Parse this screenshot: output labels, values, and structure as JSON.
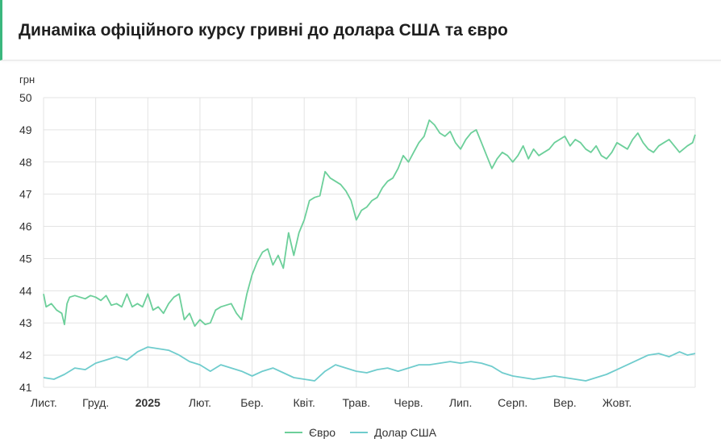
{
  "header": {
    "title": "Динаміка офіційного курсу гривні до долара США та євро"
  },
  "chart_data": {
    "type": "line",
    "y_unit": "грн",
    "ylim": [
      41,
      50
    ],
    "yticks": [
      "41",
      "42",
      "43",
      "44",
      "45",
      "46",
      "47",
      "48",
      "49",
      "50"
    ],
    "xlim": [
      0,
      12.5
    ],
    "xticks": [
      {
        "label": "Лист.",
        "pos": 0,
        "bold": false
      },
      {
        "label": "Груд.",
        "pos": 1,
        "bold": false
      },
      {
        "label": "2025",
        "pos": 2,
        "bold": true
      },
      {
        "label": "Лют.",
        "pos": 3,
        "bold": false
      },
      {
        "label": "Бер.",
        "pos": 4,
        "bold": false
      },
      {
        "label": "Квіт.",
        "pos": 5,
        "bold": false
      },
      {
        "label": "Трав.",
        "pos": 6,
        "bold": false
      },
      {
        "label": "Черв.",
        "pos": 7,
        "bold": false
      },
      {
        "label": "Лип.",
        "pos": 8,
        "bold": false
      },
      {
        "label": "Серп.",
        "pos": 9,
        "bold": false
      },
      {
        "label": "Вер.",
        "pos": 10,
        "bold": false
      },
      {
        "label": "Жовт.",
        "pos": 11,
        "bold": false
      }
    ],
    "grid": true,
    "legend_position": "bottom",
    "series": [
      {
        "name": "Євро",
        "color": "#6ccf9a",
        "x": [
          0,
          0.05,
          0.15,
          0.25,
          0.35,
          0.4,
          0.45,
          0.5,
          0.6,
          0.7,
          0.8,
          0.9,
          1.0,
          1.1,
          1.2,
          1.3,
          1.4,
          1.5,
          1.6,
          1.7,
          1.8,
          1.9,
          2.0,
          2.1,
          2.2,
          2.3,
          2.4,
          2.5,
          2.6,
          2.7,
          2.8,
          2.9,
          3.0,
          3.1,
          3.2,
          3.3,
          3.4,
          3.5,
          3.6,
          3.7,
          3.8,
          3.9,
          4.0,
          4.1,
          4.2,
          4.3,
          4.4,
          4.5,
          4.6,
          4.7,
          4.8,
          4.9,
          5.0,
          5.1,
          5.2,
          5.3,
          5.4,
          5.5,
          5.6,
          5.7,
          5.8,
          5.9,
          6.0,
          6.1,
          6.2,
          6.3,
          6.4,
          6.5,
          6.6,
          6.7,
          6.8,
          6.9,
          7.0,
          7.1,
          7.2,
          7.3,
          7.4,
          7.5,
          7.6,
          7.7,
          7.8,
          7.9,
          8.0,
          8.1,
          8.2,
          8.3,
          8.4,
          8.5,
          8.6,
          8.7,
          8.8,
          8.9,
          9.0,
          9.1,
          9.2,
          9.3,
          9.4,
          9.5,
          9.6,
          9.7,
          9.8,
          9.9,
          10.0,
          10.1,
          10.2,
          10.3,
          10.4,
          10.5,
          10.6,
          10.7,
          10.8,
          10.9,
          11.0,
          11.1,
          11.2,
          11.3,
          11.4,
          11.5,
          11.6,
          11.7,
          11.8,
          11.9,
          12.0,
          12.1,
          12.2,
          12.35,
          12.45,
          12.5
        ],
        "values": [
          43.9,
          43.5,
          43.6,
          43.4,
          43.3,
          42.95,
          43.6,
          43.8,
          43.85,
          43.8,
          43.75,
          43.85,
          43.8,
          43.7,
          43.85,
          43.55,
          43.6,
          43.5,
          43.9,
          43.5,
          43.6,
          43.5,
          43.9,
          43.4,
          43.5,
          43.3,
          43.6,
          43.8,
          43.9,
          43.1,
          43.3,
          42.9,
          43.1,
          42.95,
          43.0,
          43.4,
          43.5,
          43.55,
          43.6,
          43.3,
          43.1,
          43.9,
          44.5,
          44.9,
          45.2,
          45.3,
          44.8,
          45.1,
          44.7,
          45.8,
          45.1,
          45.8,
          46.2,
          46.8,
          46.9,
          46.95,
          47.7,
          47.5,
          47.4,
          47.3,
          47.1,
          46.8,
          46.2,
          46.5,
          46.6,
          46.8,
          46.9,
          47.2,
          47.4,
          47.5,
          47.8,
          48.2,
          48.0,
          48.3,
          48.6,
          48.8,
          49.3,
          49.15,
          48.9,
          48.8,
          48.95,
          48.6,
          48.4,
          48.7,
          48.9,
          49.0,
          48.6,
          48.2,
          47.8,
          48.1,
          48.3,
          48.2,
          48.0,
          48.2,
          48.5,
          48.1,
          48.4,
          48.2,
          48.3,
          48.4,
          48.6,
          48.7,
          48.8,
          48.5,
          48.7,
          48.6,
          48.4,
          48.3,
          48.5,
          48.2,
          48.1,
          48.3,
          48.6,
          48.5,
          48.4,
          48.7,
          48.9,
          48.6,
          48.4,
          48.3,
          48.5,
          48.6,
          48.7,
          48.5,
          48.3,
          48.5,
          48.6,
          48.85
        ]
      },
      {
        "name": "Долар США",
        "color": "#6fcccd",
        "x": [
          0,
          0.2,
          0.4,
          0.6,
          0.8,
          1.0,
          1.2,
          1.4,
          1.6,
          1.8,
          2.0,
          2.2,
          2.4,
          2.6,
          2.8,
          3.0,
          3.2,
          3.4,
          3.6,
          3.8,
          4.0,
          4.2,
          4.4,
          4.6,
          4.8,
          5.0,
          5.2,
          5.4,
          5.6,
          5.8,
          6.0,
          6.2,
          6.4,
          6.6,
          6.8,
          7.0,
          7.2,
          7.4,
          7.6,
          7.8,
          8.0,
          8.2,
          8.4,
          8.6,
          8.8,
          9.0,
          9.2,
          9.4,
          9.6,
          9.8,
          10.0,
          10.2,
          10.4,
          10.6,
          10.8,
          11.0,
          11.2,
          11.4,
          11.6,
          11.8,
          12.0,
          12.2,
          12.35,
          12.5
        ],
        "values": [
          41.3,
          41.25,
          41.4,
          41.6,
          41.55,
          41.75,
          41.85,
          41.95,
          41.85,
          42.1,
          42.25,
          42.2,
          42.15,
          42.0,
          41.8,
          41.7,
          41.5,
          41.7,
          41.6,
          41.5,
          41.35,
          41.5,
          41.6,
          41.45,
          41.3,
          41.25,
          41.2,
          41.5,
          41.7,
          41.6,
          41.5,
          41.45,
          41.55,
          41.6,
          41.5,
          41.6,
          41.7,
          41.7,
          41.75,
          41.8,
          41.75,
          41.8,
          41.75,
          41.65,
          41.45,
          41.35,
          41.3,
          41.25,
          41.3,
          41.35,
          41.3,
          41.25,
          41.2,
          41.3,
          41.4,
          41.55,
          41.7,
          41.85,
          42.0,
          42.05,
          41.95,
          42.1,
          42.0,
          42.05
        ]
      }
    ]
  }
}
